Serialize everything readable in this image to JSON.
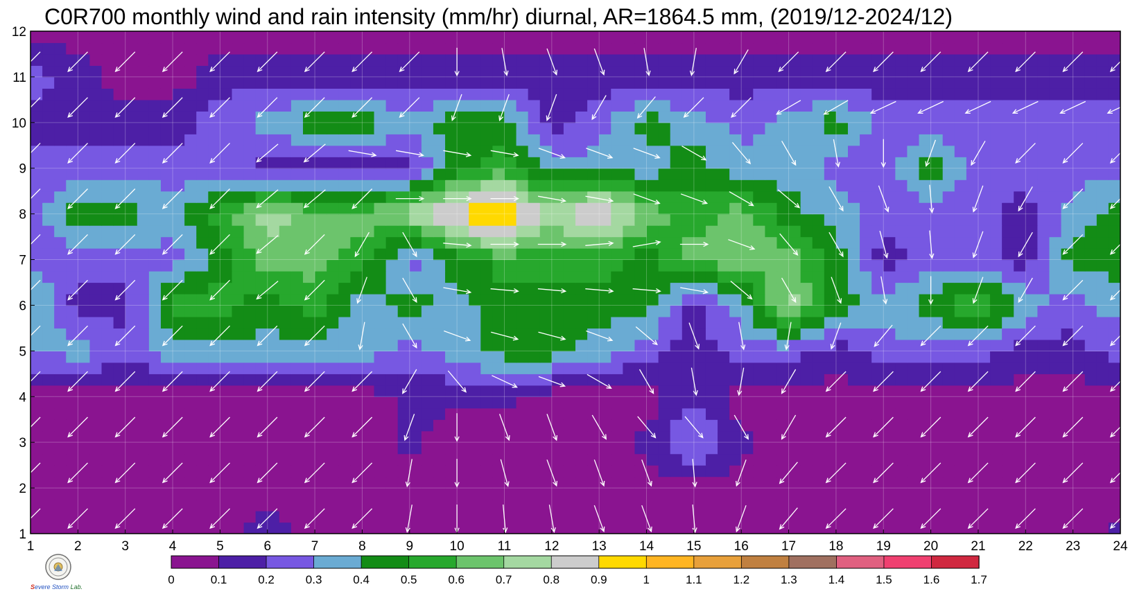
{
  "chart_data": {
    "type": "heatmap",
    "title": "C0R700 monthly wind and rain intensity (mm/hr) diurnal, AR=1864.5 mm, (2019/12-2024/12)",
    "xlabel": "",
    "ylabel": "",
    "x": [
      1,
      2,
      3,
      4,
      5,
      6,
      7,
      8,
      9,
      10,
      11,
      12,
      13,
      14,
      15,
      16,
      17,
      18,
      19,
      20,
      21,
      22,
      23,
      24
    ],
    "y": [
      1,
      2,
      3,
      4,
      5,
      6,
      7,
      8,
      9,
      10,
      11,
      12
    ],
    "xlim": [
      1,
      24
    ],
    "ylim": [
      1,
      12
    ],
    "x_tick_labels": [
      "1",
      "2",
      "3",
      "4",
      "5",
      "6",
      "7",
      "8",
      "9",
      "10",
      "11",
      "12",
      "13",
      "14",
      "15",
      "16",
      "17",
      "18",
      "19",
      "20",
      "21",
      "22",
      "23",
      "24"
    ],
    "y_tick_labels": [
      "1",
      "2",
      "3",
      "4",
      "5",
      "6",
      "7",
      "8",
      "9",
      "10",
      "11",
      "12"
    ],
    "grid": true,
    "colorbar": {
      "position": "bottom",
      "levels": [
        0,
        0.1,
        0.2,
        0.3,
        0.4,
        0.5,
        0.6,
        0.7,
        0.8,
        0.9,
        1,
        1.1,
        1.2,
        1.3,
        1.4,
        1.5,
        1.6,
        1.7
      ],
      "tick_labels": [
        "0",
        "0.1",
        "0.2",
        "0.3",
        "0.4",
        "0.5",
        "0.6",
        "0.7",
        "0.8",
        "0.9",
        "1",
        "1.1",
        "1.2",
        "1.3",
        "1.4",
        "1.5",
        "1.6",
        "1.7"
      ],
      "colors": [
        "#8a1490",
        "#4d1fa6",
        "#7758e2",
        "#6aabd3",
        "#138c16",
        "#27a82d",
        "#6cc46c",
        "#a4d8a1",
        "#cccccc",
        "#ffd900",
        "#ffb522",
        "#e8a03a",
        "#c08040",
        "#a07060",
        "#e06080",
        "#f04070",
        "#d02840"
      ]
    },
    "contour_color": "#e8a020",
    "arrow_color": "#ffffff",
    "months_z": [
      [
        0.05,
        0.05,
        0.05,
        0.05,
        0.05,
        0.15,
        0.05,
        0.05,
        0.05,
        0.05,
        0.05,
        0.05,
        0.05,
        0.05,
        0.05,
        0.05,
        0.05,
        0.05,
        0.05,
        0.05,
        0.05,
        0.05,
        0.05,
        0.12
      ],
      [
        0.05,
        0.05,
        0.05,
        0.05,
        0.05,
        0.05,
        0.05,
        0.05,
        0.05,
        0.05,
        0.05,
        0.05,
        0.05,
        0.05,
        0.05,
        0.05,
        0.05,
        0.05,
        0.05,
        0.05,
        0.05,
        0.05,
        0.05,
        0.05
      ],
      [
        0.05,
        0.05,
        0.05,
        0.05,
        0.05,
        0.05,
        0.05,
        0.05,
        0.12,
        0.05,
        0.05,
        0.05,
        0.05,
        0.12,
        0.35,
        0.12,
        0.05,
        0.05,
        0.05,
        0.05,
        0.05,
        0.05,
        0.05,
        0.05
      ],
      [
        0.05,
        0.05,
        0.05,
        0.05,
        0.05,
        0.05,
        0.05,
        0.05,
        0.12,
        0.12,
        0.12,
        0.05,
        0.05,
        0.05,
        0.15,
        0.05,
        0.05,
        0.05,
        0.05,
        0.05,
        0.05,
        0.05,
        0.05,
        0.05
      ],
      [
        0.3,
        0.35,
        0.25,
        0.35,
        0.35,
        0.35,
        0.35,
        0.35,
        0.25,
        0.35,
        0.45,
        0.45,
        0.35,
        0.25,
        0.15,
        0.25,
        0.25,
        0.15,
        0.25,
        0.25,
        0.25,
        0.15,
        0.15,
        0.25
      ],
      [
        0.45,
        0.15,
        0.15,
        0.55,
        0.55,
        0.45,
        0.55,
        0.35,
        0.45,
        0.35,
        0.45,
        0.45,
        0.45,
        0.45,
        0.15,
        0.35,
        0.75,
        0.45,
        0.35,
        0.45,
        0.65,
        0.35,
        0.25,
        0.35
      ],
      [
        0.25,
        0.25,
        0.25,
        0.25,
        0.45,
        0.65,
        0.65,
        0.55,
        0.25,
        0.45,
        0.55,
        0.55,
        0.55,
        0.45,
        0.65,
        0.65,
        0.65,
        0.45,
        0.15,
        0.25,
        0.25,
        0.15,
        0.45,
        0.45
      ],
      [
        0.25,
        0.45,
        0.45,
        0.35,
        0.55,
        0.75,
        0.65,
        0.65,
        0.75,
        0.95,
        1.05,
        0.75,
        0.95,
        0.65,
        0.55,
        0.65,
        0.45,
        0.35,
        0.25,
        0.25,
        0.25,
        0.15,
        0.35,
        0.45
      ],
      [
        0.25,
        0.25,
        0.25,
        0.25,
        0.25,
        0.15,
        0.15,
        0.15,
        0.15,
        0.45,
        0.55,
        0.35,
        0.35,
        0.35,
        0.45,
        0.35,
        0.35,
        0.25,
        0.25,
        0.45,
        0.25,
        0.25,
        0.25,
        0.25
      ],
      [
        0.15,
        0.15,
        0.15,
        0.15,
        0.25,
        0.35,
        0.45,
        0.45,
        0.35,
        0.45,
        0.45,
        0.15,
        0.25,
        0.45,
        0.35,
        0.25,
        0.35,
        0.45,
        0.25,
        0.25,
        0.25,
        0.25,
        0.25,
        0.25
      ],
      [
        0.25,
        0.15,
        0.05,
        0.05,
        0.15,
        0.15,
        0.15,
        0.15,
        0.15,
        0.15,
        0.15,
        0.15,
        0.15,
        0.15,
        0.15,
        0.15,
        0.15,
        0.15,
        0.15,
        0.15,
        0.15,
        0.15,
        0.15,
        0.15
      ],
      [
        0.05,
        0.05,
        0.05,
        0.05,
        0.05,
        0.05,
        0.05,
        0.05,
        0.05,
        0.05,
        0.05,
        0.05,
        0.05,
        0.05,
        0.05,
        0.05,
        0.05,
        0.05,
        0.05,
        0.05,
        0.05,
        0.05,
        0.05,
        0.05
      ]
    ],
    "wind_direction_deg_toward": [
      [
        225,
        225,
        225,
        225,
        225,
        225,
        225,
        225,
        190,
        180,
        175,
        170,
        160,
        160,
        175,
        200,
        220,
        225,
        225,
        225,
        225,
        225,
        225,
        225
      ],
      [
        225,
        225,
        225,
        225,
        225,
        225,
        225,
        225,
        190,
        180,
        165,
        160,
        160,
        160,
        175,
        200,
        220,
        225,
        225,
        225,
        225,
        225,
        225,
        225
      ],
      [
        225,
        225,
        225,
        225,
        225,
        225,
        225,
        225,
        200,
        180,
        160,
        160,
        150,
        140,
        140,
        150,
        210,
        225,
        225,
        225,
        225,
        225,
        225,
        225
      ],
      [
        225,
        225,
        225,
        225,
        225,
        225,
        225,
        225,
        210,
        140,
        115,
        110,
        120,
        150,
        170,
        190,
        210,
        225,
        225,
        225,
        225,
        225,
        225,
        225
      ],
      [
        225,
        225,
        225,
        225,
        225,
        225,
        225,
        190,
        150,
        110,
        105,
        105,
        110,
        130,
        160,
        170,
        190,
        200,
        220,
        225,
        225,
        225,
        225,
        225
      ],
      [
        225,
        225,
        225,
        225,
        225,
        230,
        225,
        200,
        150,
        100,
        95,
        95,
        95,
        95,
        100,
        130,
        150,
        160,
        170,
        180,
        200,
        210,
        225,
        225
      ],
      [
        225,
        225,
        225,
        225,
        225,
        230,
        225,
        210,
        150,
        95,
        90,
        90,
        85,
        80,
        90,
        110,
        140,
        150,
        165,
        175,
        200,
        210,
        225,
        225
      ],
      [
        225,
        225,
        225,
        225,
        225,
        230,
        230,
        225,
        90,
        90,
        90,
        100,
        100,
        110,
        110,
        120,
        130,
        150,
        160,
        175,
        200,
        210,
        225,
        225
      ],
      [
        225,
        225,
        225,
        225,
        225,
        230,
        230,
        100,
        100,
        100,
        100,
        110,
        110,
        110,
        120,
        140,
        150,
        170,
        180,
        200,
        210,
        225,
        225,
        225
      ],
      [
        225,
        225,
        225,
        225,
        225,
        225,
        225,
        225,
        225,
        200,
        200,
        200,
        210,
        220,
        225,
        225,
        240,
        240,
        245,
        245,
        245,
        245,
        245,
        245
      ],
      [
        225,
        225,
        225,
        225,
        225,
        225,
        225,
        225,
        225,
        180,
        170,
        160,
        160,
        170,
        190,
        210,
        225,
        225,
        225,
        225,
        225,
        225,
        225,
        225
      ],
      [
        225,
        225,
        225,
        225,
        225,
        225,
        225,
        225,
        190,
        180,
        175,
        160,
        160,
        170,
        190,
        210,
        225,
        225,
        225,
        225,
        225,
        225,
        225,
        225
      ]
    ]
  },
  "logo": {
    "lab_s": "S",
    "lab_storm": "evere Storm",
    "lab_lab": "Lab."
  }
}
